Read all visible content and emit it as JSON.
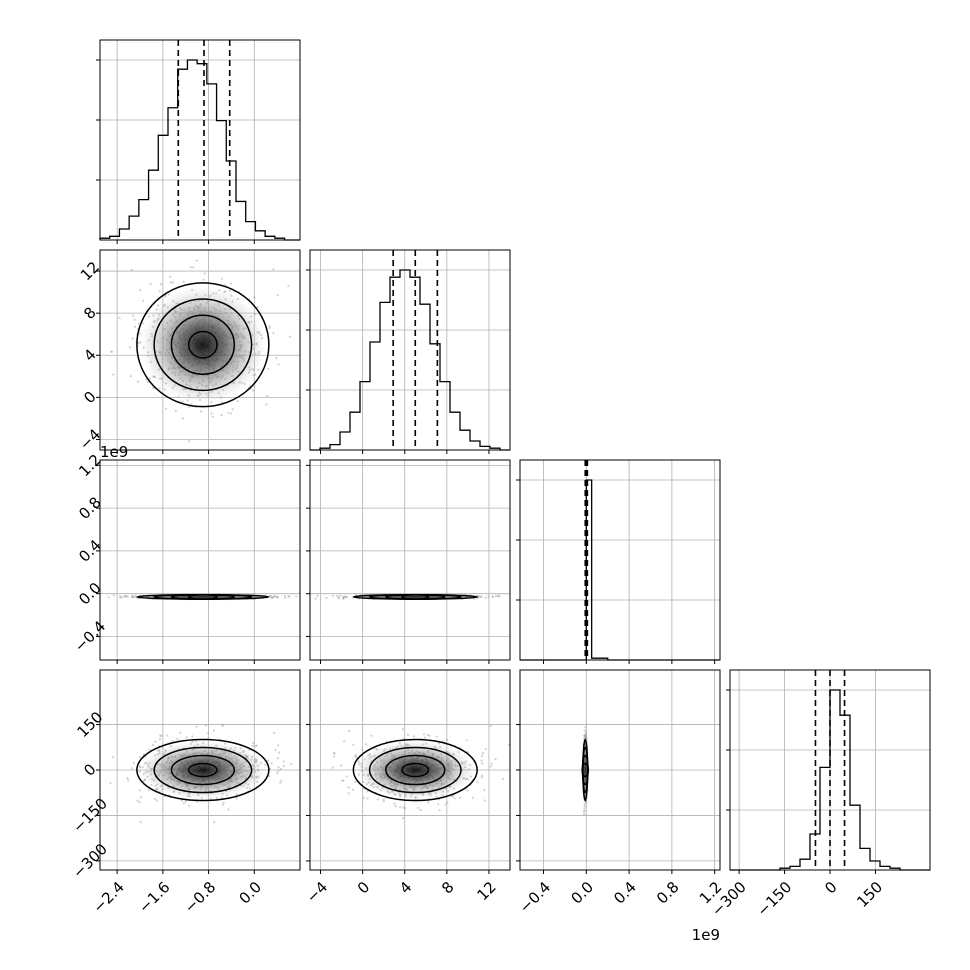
{
  "chart_data": {
    "type": "corner",
    "parameters": [
      {
        "range": [
          -2.7,
          0.8
        ],
        "ticks": [
          -2.4,
          -1.6,
          -0.8,
          0.0
        ],
        "tick_labels": [
          "−2.4",
          "−1.6",
          "−0.8",
          "0.0"
        ],
        "offset_label": "",
        "quantiles": [
          -1.33,
          -0.88,
          -0.43
        ]
      },
      {
        "range": [
          -5,
          14
        ],
        "ticks": [
          -4,
          0,
          4,
          8,
          12
        ],
        "tick_labels": [
          "−4",
          "0",
          "4",
          "8",
          "12"
        ],
        "offset_label": "",
        "quantiles": [
          2.9,
          5.0,
          7.1
        ]
      },
      {
        "range": [
          -0.62,
          1.25
        ],
        "ticks": [
          -0.4,
          0.0,
          0.4,
          0.8,
          1.2
        ],
        "tick_labels": [
          "−0.4",
          "0.0",
          "0.4",
          "0.8",
          "1.2"
        ],
        "offset_label": "1e9",
        "quantiles": [
          -0.01,
          0.0,
          0.01
        ]
      },
      {
        "range": [
          -330,
          330
        ],
        "ticks": [
          -300,
          -150,
          0,
          150
        ],
        "tick_labels": [
          "−300",
          "−150",
          "0",
          "150"
        ],
        "offset_label": "",
        "quantiles": [
          -48,
          0,
          48
        ]
      }
    ],
    "histograms": [
      {
        "bin_edges": [
          -2.7,
          -2.53,
          -2.36,
          -2.19,
          -2.02,
          -1.85,
          -1.68,
          -1.51,
          -1.34,
          -1.17,
          -1.0,
          -0.83,
          -0.66,
          -0.49,
          -0.32,
          -0.15,
          0.02,
          0.19,
          0.36,
          0.53,
          0.8
        ],
        "counts": [
          1,
          2,
          6,
          13,
          22,
          38,
          57,
          72,
          93,
          98,
          96,
          85,
          65,
          43,
          21,
          10,
          5,
          2,
          1,
          0
        ]
      },
      {
        "bin_edges": [
          -5,
          -4.05,
          -3.1,
          -2.15,
          -1.2,
          -0.25,
          0.7,
          1.65,
          2.6,
          3.55,
          4.5,
          5.45,
          6.4,
          7.35,
          8.3,
          9.25,
          10.2,
          11.15,
          12.1,
          13.05,
          14
        ],
        "counts": [
          0,
          1,
          3,
          10,
          21,
          38,
          60,
          82,
          96,
          100,
          96,
          81,
          59,
          38,
          21,
          11,
          5,
          2,
          1,
          0
        ]
      },
      {
        "bin_edges": [
          -0.62,
          -0.4,
          -0.3,
          -0.1,
          0.0,
          0.05,
          0.2,
          0.4,
          0.6,
          0.8,
          1.0,
          1.25
        ],
        "counts": [
          0,
          0,
          0,
          0,
          100,
          1,
          0,
          0,
          0,
          0,
          0
        ]
      },
      {
        "bin_edges": [
          -330,
          -297,
          -264,
          -231,
          -198,
          -165,
          -132,
          -99,
          -66,
          -33,
          0,
          33,
          66,
          99,
          132,
          165,
          198,
          231,
          264,
          297,
          330
        ],
        "counts": [
          0,
          0,
          0,
          0,
          0,
          1,
          2,
          6,
          20,
          57,
          100,
          86,
          36,
          12,
          5,
          2,
          1,
          0,
          0,
          0
        ]
      }
    ],
    "pairs": [
      {
        "row": 1,
        "col": 0,
        "center": [
          -0.9,
          5.0
        ],
        "sd": [
          0.55,
          2.8
        ]
      },
      {
        "row": 2,
        "col": 0,
        "center": [
          -0.9,
          -0.03
        ],
        "sd": [
          0.55,
          0.008
        ]
      },
      {
        "row": 2,
        "col": 1,
        "center": [
          5.0,
          -0.03
        ],
        "sd": [
          2.8,
          0.008
        ]
      },
      {
        "row": 3,
        "col": 0,
        "center": [
          -0.9,
          0
        ],
        "sd": [
          0.55,
          48
        ]
      },
      {
        "row": 3,
        "col": 1,
        "center": [
          5.0,
          0
        ],
        "sd": [
          2.8,
          48
        ]
      },
      {
        "row": 3,
        "col": 2,
        "center": [
          -0.01,
          0
        ],
        "sd": [
          0.008,
          48
        ]
      }
    ]
  }
}
